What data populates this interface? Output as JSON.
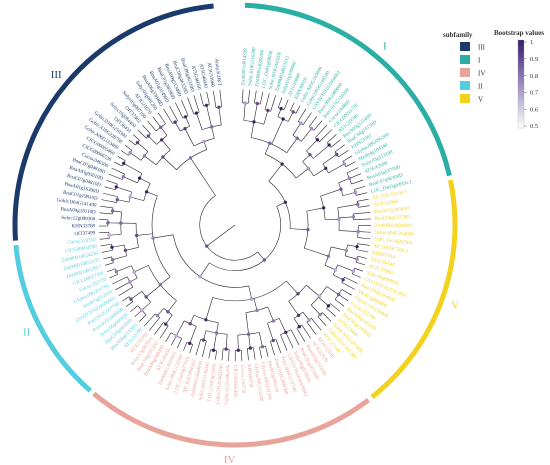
{
  "legend": {
    "title": "subfamily",
    "items": [
      {
        "label": "III",
        "color": "#1b3a6b"
      },
      {
        "label": "I",
        "color": "#2bafa5"
      },
      {
        "label": "IV",
        "color": "#e8a39b"
      },
      {
        "label": "II",
        "color": "#55cde0"
      },
      {
        "label": "V",
        "color": "#f2d21d"
      }
    ]
  },
  "bootstrap": {
    "title": "Bootstrap values",
    "ticks": [
      "1",
      "0.9",
      "0.8",
      "0.7",
      "0.6",
      "0.5"
    ],
    "color_low": "#ffffff",
    "color_high": "#3a1a6e"
  },
  "ring_labels": [
    {
      "text": "I",
      "color": "#2bafa5"
    },
    {
      "text": "V",
      "color": "#f2d21d"
    },
    {
      "text": "IV",
      "color": "#e8a39b"
    },
    {
      "text": "II",
      "color": "#55cde0"
    },
    {
      "text": "III",
      "color": "#1b3a6b"
    }
  ],
  "subfamily_colors": {
    "I": "#2bafa5",
    "II": "#55cde0",
    "III": "#1b3a6b",
    "IV": "#e8a39b",
    "V": "#f2d21d"
  },
  "tips": [
    {
      "label": "Zm00001d014339",
      "subfamily": "I"
    },
    {
      "label": "Sobic.010G116200",
      "subfamily": "I"
    },
    {
      "label": "Zm00001d049208",
      "subfamily": "I"
    },
    {
      "label": "LOC_Os01g69030",
      "subfamily": "I"
    },
    {
      "label": "Sobic.003G443200",
      "subfamily": "I"
    },
    {
      "label": "Zm00001d033212",
      "subfamily": "I"
    },
    {
      "label": "Solyc01g109880",
      "subfamily": "I"
    },
    {
      "label": "AT1G18880",
      "subfamily": "I"
    },
    {
      "label": "KHN39018",
      "subfamily": "I"
    },
    {
      "label": "Gohir.A05G165600",
      "subfamily": "I"
    },
    {
      "label": "Gohir.D05G168100",
      "subfamily": "I"
    },
    {
      "label": "GSVIVT01013564001",
      "subfamily": "I"
    },
    {
      "label": "Potri.004G089600",
      "subfamily": "I"
    },
    {
      "label": "Potri.017G120300",
      "subfamily": "I"
    },
    {
      "label": "Cucsa.244860",
      "subfamily": "I"
    },
    {
      "label": "CICG00011720",
      "subfamily": "I"
    },
    {
      "label": "AT1G59740",
      "subfamily": "I"
    },
    {
      "label": "BnaA05g12140D",
      "subfamily": "I"
    },
    {
      "label": "BnaC04g14130D",
      "subfamily": "I"
    },
    {
      "label": "KHN23561",
      "subfamily": "I"
    },
    {
      "label": "Glyma.08G095300",
      "subfamily": "I"
    },
    {
      "label": "Medtr4g104540",
      "subfamily": "I"
    },
    {
      "label": "Solyc03g113100",
      "subfamily": "I"
    },
    {
      "label": "AT5G62680",
      "subfamily": "I"
    },
    {
      "label": "BnaA03g53750D",
      "subfamily": "I"
    },
    {
      "label": "BnaC07g46300D",
      "subfamily": "I"
    },
    {
      "label": "LOC_Os01g04950.1",
      "subfamily": "I"
    },
    {
      "label": "XP_020154140.1",
      "subfamily": "V"
    },
    {
      "label": "AT2G02040",
      "subfamily": "V"
    },
    {
      "label": "BnaA07g34500D",
      "subfamily": "V"
    },
    {
      "label": "BnaC06g13770D",
      "subfamily": "V"
    },
    {
      "label": "Zm00001d018090",
      "subfamily": "V"
    },
    {
      "label": "Sobic.004G254600",
      "subfamily": "V"
    },
    {
      "label": "LOC_Os10g02260",
      "subfamily": "V"
    },
    {
      "label": "XP_020167350.1",
      "subfamily": "V"
    },
    {
      "label": "KHN07014",
      "subfamily": "V"
    },
    {
      "label": "AT3G54140",
      "subfamily": "V"
    },
    {
      "label": "AT2G37900",
      "subfamily": "V"
    },
    {
      "label": "Solyc09g089850",
      "subfamily": "V"
    },
    {
      "label": "GSVIVT01025361001",
      "subfamily": "V"
    },
    {
      "label": "Potri.002G104900",
      "subfamily": "V"
    },
    {
      "label": "Medtr1g060860",
      "subfamily": "V"
    },
    {
      "label": "Glyma.13G256900",
      "subfamily": "V"
    },
    {
      "label": "Cucsa.322300",
      "subfamily": "V"
    },
    {
      "label": "BnaA06g14520D",
      "subfamily": "V"
    },
    {
      "label": "BnaC05g16690D",
      "subfamily": "V"
    },
    {
      "label": "AT5G13400",
      "subfamily": "V"
    },
    {
      "label": "Gohir.A11G287400",
      "subfamily": "V"
    },
    {
      "label": "Gohir.D11G301300",
      "subfamily": "V"
    },
    {
      "label": "AT1G22540",
      "subfamily": "V"
    },
    {
      "label": "AT1G22550",
      "subfamily": "IV"
    },
    {
      "label": "AT1G22570",
      "subfamily": "IV"
    },
    {
      "label": "BnaA02g23180D",
      "subfamily": "IV"
    },
    {
      "label": "BnaC02g30530D",
      "subfamily": "IV"
    },
    {
      "label": "Solyc08g076930",
      "subfamily": "IV"
    },
    {
      "label": "GSVIVT01030470001",
      "subfamily": "IV"
    },
    {
      "label": "Potri.006G137700",
      "subfamily": "IV"
    },
    {
      "label": "Potri.016G099300",
      "subfamily": "IV"
    },
    {
      "label": "Medtr2g096310",
      "subfamily": "IV"
    },
    {
      "label": "Glyma.04G212300",
      "subfamily": "IV"
    },
    {
      "label": "Glyma.06G154500",
      "subfamily": "IV"
    },
    {
      "label": "KHN44150",
      "subfamily": "IV"
    },
    {
      "label": "Cucsa.150750",
      "subfamily": "IV"
    },
    {
      "label": "CICG00005420",
      "subfamily": "IV"
    },
    {
      "label": "Gohir.A12G080200",
      "subfamily": "IV"
    },
    {
      "label": "Gohir.D12G082100",
      "subfamily": "IV"
    },
    {
      "label": "LOC_Os03g51050",
      "subfamily": "IV"
    },
    {
      "label": "Sobic.001G136300",
      "subfamily": "IV"
    },
    {
      "label": "Zm00001d044090",
      "subfamily": "IV"
    },
    {
      "label": "XP_020199410.1",
      "subfamily": "IV"
    },
    {
      "label": "LOC_Os05g27010",
      "subfamily": "IV"
    },
    {
      "label": "Sobic.009G122500",
      "subfamily": "IV"
    },
    {
      "label": "Zm00001d025011",
      "subfamily": "IV"
    },
    {
      "label": "AT3G45650",
      "subfamily": "IV"
    },
    {
      "label": "BnaA09g04060D",
      "subfamily": "IV"
    },
    {
      "label": "BnaC09g03530D",
      "subfamily": "IV"
    },
    {
      "label": "Solyc12g087910",
      "subfamily": "IV"
    },
    {
      "label": "AT3G16180",
      "subfamily": "IV"
    },
    {
      "label": "AT1G52190",
      "subfamily": "II"
    },
    {
      "label": "BnaA06g21420D",
      "subfamily": "II"
    },
    {
      "label": "BnaC03g66560D",
      "subfamily": "II"
    },
    {
      "label": "Solyc06g060410",
      "subfamily": "II"
    },
    {
      "label": "Potri.015G046500",
      "subfamily": "II"
    },
    {
      "label": "Potri.012G057700",
      "subfamily": "II"
    },
    {
      "label": "GSVIVT01024590001",
      "subfamily": "II"
    },
    {
      "label": "Medtr5g012010",
      "subfamily": "II"
    },
    {
      "label": "Glyma.09G201700",
      "subfamily": "II"
    },
    {
      "label": "Cucsa.162770",
      "subfamily": "II"
    },
    {
      "label": "CICG00017330",
      "subfamily": "II"
    },
    {
      "label": "Zm00001d053617",
      "subfamily": "II"
    },
    {
      "label": "Zm00001d052135",
      "subfamily": "II"
    },
    {
      "label": "Zm00001d024218",
      "subfamily": "II"
    },
    {
      "label": "CICG00004790",
      "subfamily": "II"
    },
    {
      "label": "Cucsa.123350",
      "subfamily": "II"
    },
    {
      "label": "OIT37499",
      "subfamily": "III"
    },
    {
      "label": "KHN33768",
      "subfamily": "III"
    },
    {
      "label": "Solyc12g099300",
      "subfamily": "III"
    },
    {
      "label": "BnaA04g18110D",
      "subfamily": "III"
    },
    {
      "label": "Gohir.D04G141400",
      "subfamily": "III"
    },
    {
      "label": "BnaC01g19810D",
      "subfamily": "III"
    },
    {
      "label": "BnaA01g16300D",
      "subfamily": "III"
    },
    {
      "label": "BnaC07g04810D",
      "subfamily": "III"
    },
    {
      "label": "BnaA03g05010D",
      "subfamily": "III"
    },
    {
      "label": "BnaC07g04810D",
      "subfamily": "III"
    },
    {
      "label": "Cucsa.046500",
      "subfamily": "III"
    },
    {
      "label": "CICG00006530",
      "subfamily": "III"
    },
    {
      "label": "CICG00005460",
      "subfamily": "III"
    },
    {
      "label": "Gohir.A06G113400",
      "subfamily": "III"
    },
    {
      "label": "Gohir.A10G228700",
      "subfamily": "III"
    },
    {
      "label": "Gohir.D10G250300",
      "subfamily": "III"
    },
    {
      "label": "OIT36433",
      "subfamily": "III"
    },
    {
      "label": "Solyc10g084400",
      "subfamily": "III"
    },
    {
      "label": "OIT37402",
      "subfamily": "III"
    },
    {
      "label": "Solyc05g007100",
      "subfamily": "III"
    },
    {
      "label": "AT3G21670",
      "subfamily": "III"
    },
    {
      "label": "Solyc03g081260",
      "subfamily": "III"
    },
    {
      "label": "BnaA06g33840D",
      "subfamily": "III"
    },
    {
      "label": "BnaA01g31490D",
      "subfamily": "III"
    },
    {
      "label": "BnaC01g38390D",
      "subfamily": "III"
    },
    {
      "label": "BnaA09g51340D",
      "subfamily": "III"
    },
    {
      "label": "BnaC08g46320D",
      "subfamily": "III"
    },
    {
      "label": "BnaC08g46310D",
      "subfamily": "III"
    },
    {
      "label": "AT5G46050",
      "subfamily": "III"
    },
    {
      "label": "AT5G46040",
      "subfamily": "III"
    },
    {
      "label": "AT3G53960",
      "subfamily": "III"
    },
    {
      "label": "Araip.K3JKT",
      "subfamily": "III"
    }
  ]
}
